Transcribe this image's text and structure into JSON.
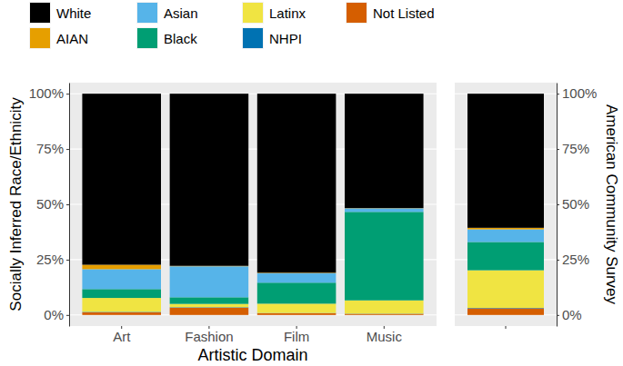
{
  "chart_data": [
    {
      "type": "bar",
      "stacked": true,
      "grid": true,
      "legend": "top",
      "x_label": "Artistic Domain",
      "y_label": "Socially Inferred Race/Ethnicity",
      "categories": [
        "Art",
        "Fashion",
        "Film",
        "Music"
      ],
      "ylim": [
        -5,
        105
      ],
      "yticks": [
        {
          "value": 0,
          "label": "0%"
        },
        {
          "value": 25,
          "label": "25%"
        },
        {
          "value": 50,
          "label": "50%"
        },
        {
          "value": 75,
          "label": "75%"
        },
        {
          "value": 100,
          "label": "100%"
        }
      ],
      "series": [
        {
          "name": "White",
          "color": "#000000",
          "values": [
            77.3,
            77.8,
            80.9,
            51.7
          ]
        },
        {
          "name": "AIAN",
          "color": "#E69F00",
          "values": [
            2,
            0.2,
            0.2,
            0.1
          ]
        },
        {
          "name": "Asian",
          "color": "#56B4E9",
          "values": [
            9,
            14,
            4.3,
            1.6
          ]
        },
        {
          "name": "Black",
          "color": "#009E73",
          "values": [
            4,
            3,
            9.5,
            40
          ]
        },
        {
          "name": "Latinx",
          "color": "#F0E442",
          "values": [
            6.3,
            1.5,
            4.2,
            6
          ]
        },
        {
          "name": "NHPI",
          "color": "#0072B2",
          "values": [
            0.2,
            0.2,
            0.1,
            0.1
          ]
        },
        {
          "name": "Not Listed",
          "color": "#D55E00",
          "values": [
            1.2,
            3.3,
            0.8,
            0.5
          ]
        }
      ]
    },
    {
      "type": "bar",
      "stacked": true,
      "grid": true,
      "y_label": "American Community Survey",
      "categories": [
        null
      ],
      "ylim": [
        -5,
        105
      ],
      "yticks": [
        {
          "value": 0,
          "label": "0%"
        },
        {
          "value": 25,
          "label": "25%"
        },
        {
          "value": 50,
          "label": "50%"
        },
        {
          "value": 75,
          "label": "75%"
        },
        {
          "value": 100,
          "label": "100%"
        }
      ],
      "series": [
        {
          "color": "#000000",
          "values": [
            60.6
          ]
        },
        {
          "color": "#E69F00",
          "values": [
            0.7
          ]
        },
        {
          "color": "#56B4E9",
          "values": [
            5.7
          ]
        },
        {
          "color": "#009E73",
          "values": [
            12.8
          ]
        },
        {
          "color": "#F0E442",
          "values": [
            17
          ]
        },
        {
          "color": "#0072B2",
          "values": [
            0.2
          ]
        },
        {
          "color": "#D55E00",
          "values": [
            3
          ]
        }
      ]
    }
  ]
}
